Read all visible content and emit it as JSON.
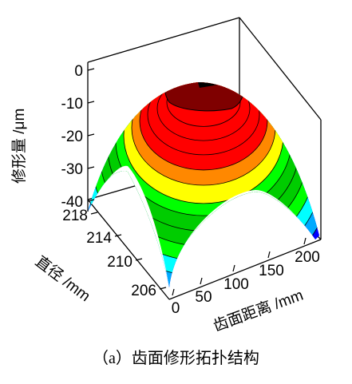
{
  "chart_data": {
    "type": "surface3d",
    "title": "",
    "caption": "（a）齿面修形拓扑结构",
    "z_axis": {
      "label": "修形量 /μm",
      "ticks": [
        "0",
        "-10",
        "-20",
        "-30",
        "-40"
      ],
      "range": [
        -40,
        0
      ]
    },
    "y_axis": {
      "label": "直径 /mm",
      "ticks": [
        "218",
        "214",
        "210",
        "206"
      ],
      "range": [
        206,
        218
      ]
    },
    "x_axis": {
      "label": "齿面距离 /mm",
      "ticks": [
        "0",
        "50",
        "100",
        "150",
        "200"
      ],
      "range": [
        0,
        200
      ]
    },
    "surface": {
      "shape": "dome",
      "peak_value": 0,
      "min_value": -40,
      "contour_levels": [
        -2,
        -5,
        -8,
        -11,
        -14,
        -17,
        -20,
        -23,
        -26,
        -29,
        -32,
        -35,
        -38
      ],
      "colormap": [
        "#ffffff",
        "#0000ff",
        "#00aaff",
        "#00ffff",
        "#00ff00",
        "#00cc00",
        "#ffff00",
        "#ff8800",
        "#ff0000",
        "#7f0000"
      ]
    }
  }
}
